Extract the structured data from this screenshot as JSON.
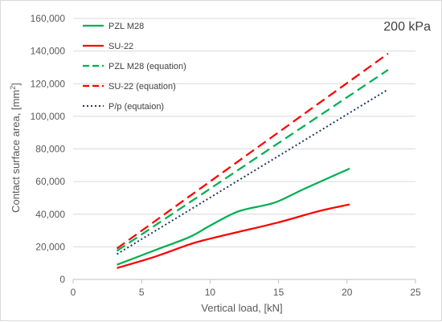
{
  "chart_data": {
    "type": "line",
    "annotation": "200 kPa",
    "xlabel": "Vertical load, [kN]",
    "ylabel_main": "Contact surface area, [mm",
    "ylabel_sup": "2",
    "ylabel_end": "]",
    "xlim": [
      0,
      25
    ],
    "ylim": [
      0,
      160000
    ],
    "x_ticks": [
      0,
      5,
      10,
      15,
      20,
      25
    ],
    "y_ticks": [
      0,
      20000,
      40000,
      60000,
      80000,
      100000,
      120000,
      140000,
      160000
    ],
    "x_tick_labels": [
      "0",
      "5",
      "10",
      "15",
      "20",
      "25"
    ],
    "y_tick_labels": [
      "0",
      "20,000",
      "40,000",
      "60,000",
      "80,000",
      "100,000",
      "120,000",
      "140,000",
      "160,000"
    ],
    "grid": true,
    "legend_position": "top-left",
    "series": [
      {
        "name": "PZL M28",
        "color": "#00b050",
        "dash": "solid",
        "points": [
          [
            3.2,
            9000
          ],
          [
            6,
            18000
          ],
          [
            8.5,
            26000
          ],
          [
            10,
            33000
          ],
          [
            12,
            41500
          ],
          [
            14,
            45500
          ],
          [
            15,
            48000
          ],
          [
            17,
            56000
          ],
          [
            20.2,
            68000
          ]
        ]
      },
      {
        "name": "SU-22",
        "color": "#ff0000",
        "dash": "solid",
        "points": [
          [
            3.2,
            7000
          ],
          [
            6,
            14000
          ],
          [
            8.5,
            21500
          ],
          [
            10,
            25000
          ],
          [
            12,
            29000
          ],
          [
            15,
            35000
          ],
          [
            18,
            42000
          ],
          [
            20.2,
            46000
          ]
        ]
      },
      {
        "name": "PZL M28 (equation)",
        "color": "#00b050",
        "dash": "dashed",
        "points": [
          [
            3.2,
            17500
          ],
          [
            23,
            128500
          ]
        ]
      },
      {
        "name": "SU-22 (equation)",
        "color": "#ff0000",
        "dash": "dashed",
        "points": [
          [
            3.2,
            19000
          ],
          [
            23,
            138500
          ]
        ]
      },
      {
        "name": "P/p (equtaion)",
        "color": "#1f3864",
        "dash": "dotted",
        "points": [
          [
            3.2,
            15500
          ],
          [
            23,
            116500
          ]
        ]
      }
    ]
  }
}
